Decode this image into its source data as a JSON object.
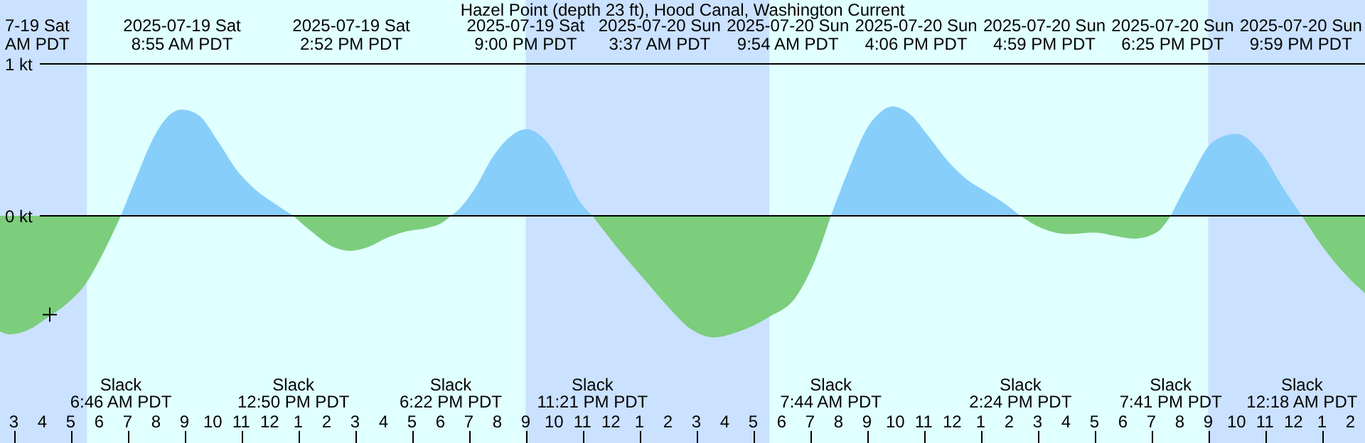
{
  "chart_data": {
    "type": "area",
    "title": "Hazel Point (depth 23 ft), Hood Canal, Washington Current",
    "x": [
      "2025-07-19T02:31",
      "2025-07-19T02:51",
      "2025-07-19T03:31",
      "2025-07-19T04:11",
      "2025-07-19T04:51",
      "2025-07-19T05:31",
      "2025-07-19T06:11",
      "2025-07-19T06:46",
      "2025-07-19T07:21",
      "2025-07-19T07:51",
      "2025-07-19T08:21",
      "2025-07-19T08:55",
      "2025-07-19T09:31",
      "2025-07-19T10:11",
      "2025-07-19T10:51",
      "2025-07-19T11:31",
      "2025-07-19T12:11",
      "2025-07-19T12:50",
      "2025-07-19T13:31",
      "2025-07-19T14:11",
      "2025-07-19T14:52",
      "2025-07-19T15:31",
      "2025-07-19T16:11",
      "2025-07-19T16:51",
      "2025-07-19T17:31",
      "2025-07-19T18:06",
      "2025-07-19T18:22",
      "2025-07-19T18:31",
      "2025-07-19T19:11",
      "2025-07-19T19:51",
      "2025-07-19T20:31",
      "2025-07-19T21:00",
      "2025-07-19T21:41",
      "2025-07-19T22:21",
      "2025-07-19T22:51",
      "2025-07-19T23:21",
      "2025-07-20T00:11",
      "2025-07-20T01:11",
      "2025-07-20T02:01",
      "2025-07-20T02:51",
      "2025-07-20T03:37",
      "2025-07-20T04:31",
      "2025-07-20T05:31",
      "2025-07-20T06:31",
      "2025-07-20T07:11",
      "2025-07-20T07:44",
      "2025-07-20T08:21",
      "2025-07-20T09:01",
      "2025-07-20T09:21",
      "2025-07-20T09:54",
      "2025-07-20T10:31",
      "2025-07-20T11:11",
      "2025-07-20T11:51",
      "2025-07-20T12:31",
      "2025-07-20T13:11",
      "2025-07-20T13:51",
      "2025-07-20T14:24",
      "2025-07-20T15:01",
      "2025-07-20T16:06",
      "2025-07-20T16:59",
      "2025-07-20T17:41",
      "2025-07-20T18:25",
      "2025-07-20T19:11",
      "2025-07-20T19:41",
      "2025-07-20T20:21",
      "2025-07-20T21:11",
      "2025-07-20T21:59",
      "2025-07-20T22:51",
      "2025-07-20T23:41",
      "2025-07-21T00:18",
      "2025-07-21T01:01",
      "2025-07-21T01:51",
      "2025-07-21T02:31"
    ],
    "series": [
      {
        "color": "#87cefa",
        "values": [
          null,
          null,
          null,
          null,
          null,
          null,
          null,
          0,
          0.27,
          0.49,
          0.64,
          0.7,
          0.66,
          0.49,
          0.3,
          0.17,
          0.08,
          0,
          null,
          null,
          null,
          null,
          null,
          null,
          null,
          null,
          0,
          0.02,
          0.17,
          0.39,
          0.53,
          0.57,
          0.5,
          0.3,
          0.11,
          0,
          null,
          null,
          null,
          null,
          null,
          null,
          null,
          null,
          null,
          0,
          0.3,
          0.58,
          0.66,
          0.72,
          0.67,
          0.52,
          0.36,
          0.24,
          0.16,
          0.08,
          0,
          null,
          null,
          null,
          null,
          null,
          null,
          0,
          0.24,
          0.49,
          0.54,
          0.42,
          0.17,
          0,
          null,
          null,
          null
        ]
      },
      {
        "color": "#7ccd7c",
        "values": [
          -0.76,
          -0.78,
          -0.75,
          -0.67,
          -0.58,
          -0.45,
          -0.23,
          0,
          null,
          null,
          null,
          null,
          null,
          null,
          null,
          null,
          null,
          0,
          -0.11,
          -0.2,
          -0.23,
          -0.2,
          -0.14,
          -0.1,
          -0.08,
          -0.04,
          0,
          null,
          null,
          null,
          null,
          null,
          null,
          null,
          null,
          0,
          -0.2,
          -0.42,
          -0.6,
          -0.75,
          -0.8,
          -0.76,
          -0.67,
          -0.53,
          -0.29,
          0,
          null,
          null,
          null,
          null,
          null,
          null,
          null,
          null,
          null,
          null,
          0,
          -0.07,
          -0.12,
          -0.11,
          -0.13,
          -0.15,
          -0.11,
          0,
          null,
          null,
          null,
          null,
          null,
          0,
          -0.2,
          -0.39,
          -0.51
        ]
      },
      {
        "type": "scatter",
        "marker": "cross",
        "color": "#000000",
        "x": [
          "2025-07-19T04:16"
        ],
        "values": [
          -0.65
        ]
      }
    ],
    "xlim": [
      "2025-07-19T02:31",
      "2025-07-21T02:31"
    ],
    "ylim": [
      -1.495,
      1.421
    ],
    "yticks": [
      {
        "value": 0,
        "label": "0 kt"
      },
      {
        "value": 1,
        "label": "1 kt"
      }
    ],
    "xticks": [
      {
        "value": "2025-07-19T03:00",
        "label": "3"
      },
      {
        "value": "2025-07-19T04:00",
        "label": "4"
      },
      {
        "value": "2025-07-19T05:00",
        "label": "5"
      },
      {
        "value": "2025-07-19T06:00",
        "label": "6"
      },
      {
        "value": "2025-07-19T07:00",
        "label": "7"
      },
      {
        "value": "2025-07-19T08:00",
        "label": "8"
      },
      {
        "value": "2025-07-19T09:00",
        "label": "9"
      },
      {
        "value": "2025-07-19T10:00",
        "label": "10"
      },
      {
        "value": "2025-07-19T11:00",
        "label": "11"
      },
      {
        "value": "2025-07-19T12:00",
        "label": "12"
      },
      {
        "value": "2025-07-19T13:00",
        "label": "1"
      },
      {
        "value": "2025-07-19T14:00",
        "label": "2"
      },
      {
        "value": "2025-07-19T15:00",
        "label": "3"
      },
      {
        "value": "2025-07-19T16:00",
        "label": "4"
      },
      {
        "value": "2025-07-19T17:00",
        "label": "5"
      },
      {
        "value": "2025-07-19T18:00",
        "label": "6"
      },
      {
        "value": "2025-07-19T19:00",
        "label": "7"
      },
      {
        "value": "2025-07-19T20:00",
        "label": "8"
      },
      {
        "value": "2025-07-19T21:00",
        "label": "9"
      },
      {
        "value": "2025-07-19T22:00",
        "label": "10"
      },
      {
        "value": "2025-07-19T23:00",
        "label": "11"
      },
      {
        "value": "2025-07-20T00:00",
        "label": "12"
      },
      {
        "value": "2025-07-20T01:00",
        "label": "1"
      },
      {
        "value": "2025-07-20T02:00",
        "label": "2"
      },
      {
        "value": "2025-07-20T03:00",
        "label": "3"
      },
      {
        "value": "2025-07-20T04:00",
        "label": "4"
      },
      {
        "value": "2025-07-20T05:00",
        "label": "5"
      },
      {
        "value": "2025-07-20T06:00",
        "label": "6"
      },
      {
        "value": "2025-07-20T07:00",
        "label": "7"
      },
      {
        "value": "2025-07-20T08:00",
        "label": "8"
      },
      {
        "value": "2025-07-20T09:00",
        "label": "9"
      },
      {
        "value": "2025-07-20T10:00",
        "label": "10"
      },
      {
        "value": "2025-07-20T11:00",
        "label": "11"
      },
      {
        "value": "2025-07-20T12:00",
        "label": "12"
      },
      {
        "value": "2025-07-20T13:00",
        "label": "1"
      },
      {
        "value": "2025-07-20T14:00",
        "label": "2"
      },
      {
        "value": "2025-07-20T15:00",
        "label": "3"
      },
      {
        "value": "2025-07-20T16:00",
        "label": "4"
      },
      {
        "value": "2025-07-20T17:00",
        "label": "5"
      },
      {
        "value": "2025-07-20T18:00",
        "label": "6"
      },
      {
        "value": "2025-07-20T19:00",
        "label": "7"
      },
      {
        "value": "2025-07-20T20:00",
        "label": "8"
      },
      {
        "value": "2025-07-20T21:00",
        "label": "9"
      },
      {
        "value": "2025-07-20T22:00",
        "label": "10"
      },
      {
        "value": "2025-07-20T23:00",
        "label": "11"
      },
      {
        "value": "2025-07-21T00:00",
        "label": "12"
      },
      {
        "value": "2025-07-21T01:00",
        "label": "1"
      },
      {
        "value": "2025-07-21T02:00",
        "label": "2"
      }
    ],
    "grid": "y",
    "bands": [
      {
        "axis": "x",
        "from": "2025-07-19T02:31",
        "to": "2025-07-19T05:35",
        "color": "#cae1ff"
      },
      {
        "axis": "x",
        "from": "2025-07-19T05:35",
        "to": "2025-07-19T21:00",
        "color": "#e0ffff"
      },
      {
        "axis": "x",
        "from": "2025-07-19T21:00",
        "to": "2025-07-20T05:35",
        "color": "#cae1ff"
      },
      {
        "axis": "x",
        "from": "2025-07-20T05:35",
        "to": "2025-07-20T21:00",
        "color": "#e0ffff"
      },
      {
        "axis": "x",
        "from": "2025-07-20T21:00",
        "to": "2025-07-21T02:31",
        "color": "#cae1ff"
      }
    ],
    "annotations": [
      "7-19 Sat\nAM PDT",
      "Slack\n6:46 AM PDT",
      "2025-07-19 Sat\n8:55 AM PDT",
      "Slack\n12:50 PM PDT",
      "2025-07-19 Sat\n2:52 PM PDT",
      "Slack\n6:22 PM PDT",
      "2025-07-19 Sat\n9:00 PM PDT",
      "Slack\n11:21 PM PDT",
      "2025-07-20 Sun\n3:37 AM PDT",
      "Slack\n7:44 AM PDT",
      "2025-07-20 Sun\n9:54 AM PDT",
      "Slack\n2:24 PM PDT",
      "2025-07-20 Sun\n4:06 PM PDT",
      "2025-07-20 Sun\n4:59 PM PDT",
      "2025-07-20 Sun\n6:25 PM PDT",
      "Slack\n7:41 PM PDT",
      "2025-07-20 Sun\n9:59 PM PDT",
      "Slack\n12:18 AM PDT"
    ]
  }
}
